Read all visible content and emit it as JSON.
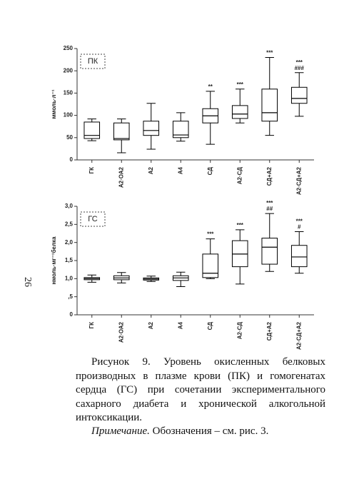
{
  "page_number": "26",
  "chart_data": [
    {
      "type": "box",
      "legend_label": "ПК",
      "y_label": "ммоль·л⁻¹",
      "color": "#000000",
      "categories": [
        "ГК",
        "А2·ОА2",
        "А2",
        "А4",
        "СД",
        "А2·СД",
        "СД+А2",
        "А2·СД+А2"
      ],
      "whisker_low": [
        43,
        16,
        24,
        42,
        35,
        83,
        55,
        98
      ],
      "q1": [
        48,
        45,
        55,
        50,
        83,
        93,
        87,
        127
      ],
      "median": [
        55,
        48,
        66,
        56,
        99,
        103,
        106,
        138
      ],
      "q3": [
        85,
        83,
        87,
        87,
        115,
        122,
        159,
        163
      ],
      "whisker_high": [
        92,
        92,
        127,
        106,
        154,
        159,
        230,
        196
      ],
      "annotations": [
        null,
        null,
        null,
        null,
        [
          "**"
        ],
        [
          "***"
        ],
        [
          "***"
        ],
        [
          "***",
          "###"
        ]
      ],
      "ylim": [
        0,
        250
      ],
      "yticks": [
        0,
        50,
        100,
        150,
        200,
        250
      ]
    },
    {
      "type": "box",
      "legend_label": "ГС",
      "y_label": "нмоль·мг⁻¹белка",
      "color": "#000000",
      "categories": [
        "ГК",
        "А2·ОА2",
        "А2",
        "А4",
        "СД",
        "А2·СД",
        "СД+А2",
        "А2·СД+А2"
      ],
      "whisker_low": [
        0.9,
        0.88,
        0.92,
        0.78,
        1.0,
        0.85,
        1.2,
        1.15
      ],
      "q1": [
        0.97,
        0.97,
        0.96,
        0.95,
        1.03,
        1.33,
        1.4,
        1.33
      ],
      "median": [
        1.0,
        1.02,
        0.99,
        1.02,
        1.15,
        1.68,
        1.87,
        1.6
      ],
      "q3": [
        1.03,
        1.08,
        1.02,
        1.08,
        1.68,
        2.05,
        2.12,
        1.92
      ],
      "whisker_high": [
        1.1,
        1.17,
        1.07,
        1.18,
        2.1,
        2.35,
        2.8,
        2.3
      ],
      "annotations": [
        null,
        null,
        null,
        null,
        [
          "***"
        ],
        [
          "***"
        ],
        [
          "***",
          "##"
        ],
        [
          "***",
          "#"
        ]
      ],
      "ylim": [
        0,
        3
      ],
      "yticks": [
        0,
        {
          "value": 0.5,
          "label": ",5"
        },
        {
          "value": 1,
          "label": "1,0"
        },
        {
          "value": 1.5,
          "label": "1,5"
        },
        {
          "value": 2,
          "label": "2,0"
        },
        {
          "value": 2.5,
          "label": "2,5"
        },
        {
          "value": 3,
          "label": "3,0"
        }
      ]
    }
  ],
  "caption": {
    "text": "Рисунок 9. Уровень окисленных белковых производных в плазме крови (ПК) и гомогенатах сердца (ГС) при сочетании экспериментального сахарного диабета и хронической алкогольной интоксикации.",
    "note_label": "Примечание.",
    "note_text": "Обозначения – см.  рис. 3."
  }
}
